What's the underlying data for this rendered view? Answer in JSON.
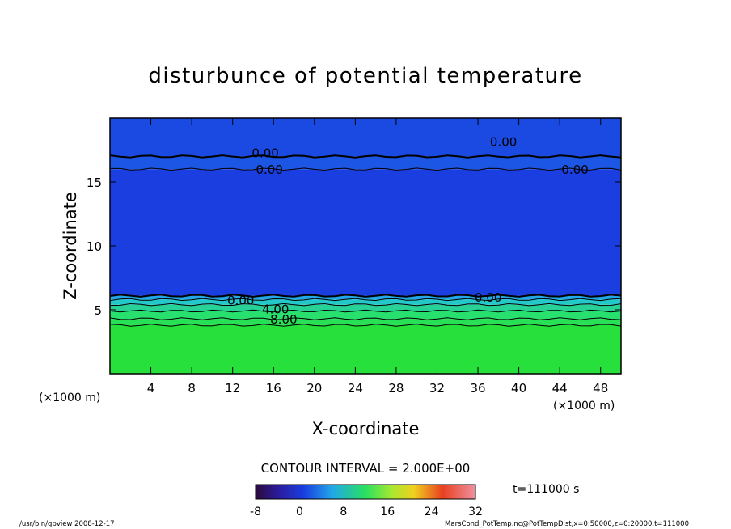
{
  "chart_data": {
    "type": "heatmap",
    "title": "disturbunce of potential temperature",
    "xlabel": "X-coordinate",
    "ylabel": "Z-coordinate",
    "x_unit": "(×1000 m)",
    "y_unit": "(×1000 m)",
    "xlim": [
      0,
      50
    ],
    "ylim": [
      0,
      20
    ],
    "x_ticks": [
      4,
      8,
      12,
      16,
      20,
      24,
      28,
      32,
      36,
      40,
      44,
      48
    ],
    "y_ticks": [
      5,
      10,
      15
    ],
    "contour_interval_text": "CONTOUR INTERVAL = 2.000E+00",
    "time_text": "t=111000 s",
    "colorbar": {
      "min": -8,
      "max": 32,
      "ticks": [
        -8,
        0,
        8,
        16,
        24,
        32
      ]
    },
    "layers": [
      {
        "z_bottom": 0,
        "z_top": 3.8,
        "value": 12
      },
      {
        "z_bottom": 3.8,
        "z_top": 4.3,
        "value": 10
      },
      {
        "z_bottom": 4.3,
        "z_top": 4.9,
        "value": 8
      },
      {
        "z_bottom": 4.9,
        "z_top": 5.4,
        "value": 6
      },
      {
        "z_bottom": 5.4,
        "z_top": 5.8,
        "value": 4
      },
      {
        "z_bottom": 5.8,
        "z_top": 6.1,
        "value": 2
      },
      {
        "z_bottom": 6.1,
        "z_top": 16.0,
        "value": -2
      },
      {
        "z_bottom": 16.0,
        "z_top": 17.0,
        "value": -1
      },
      {
        "z_bottom": 17.0,
        "z_top": 20.0,
        "value": -1.5
      }
    ],
    "contour_labels": [
      {
        "text": "0.00",
        "x": 12.8,
        "z": 5.8
      },
      {
        "text": "4.00",
        "x": 16.2,
        "z": 5.1
      },
      {
        "text": "8.00",
        "x": 17.0,
        "z": 4.3
      },
      {
        "text": "0.00",
        "x": 37.0,
        "z": 6.0
      },
      {
        "text": "0.00",
        "x": 15.2,
        "z": 17.3
      },
      {
        "text": "0.00",
        "x": 15.6,
        "z": 16.0
      },
      {
        "text": "0.00",
        "x": 38.5,
        "z": 18.2
      },
      {
        "text": "0.00",
        "x": 45.5,
        "z": 16.0
      }
    ]
  },
  "footer": {
    "left": "/usr/bin/gpview  2008-12-17",
    "right": "MarsCond_PotTemp.nc@PotTempDist,x=0:50000,z=0:20000,t=111000"
  }
}
